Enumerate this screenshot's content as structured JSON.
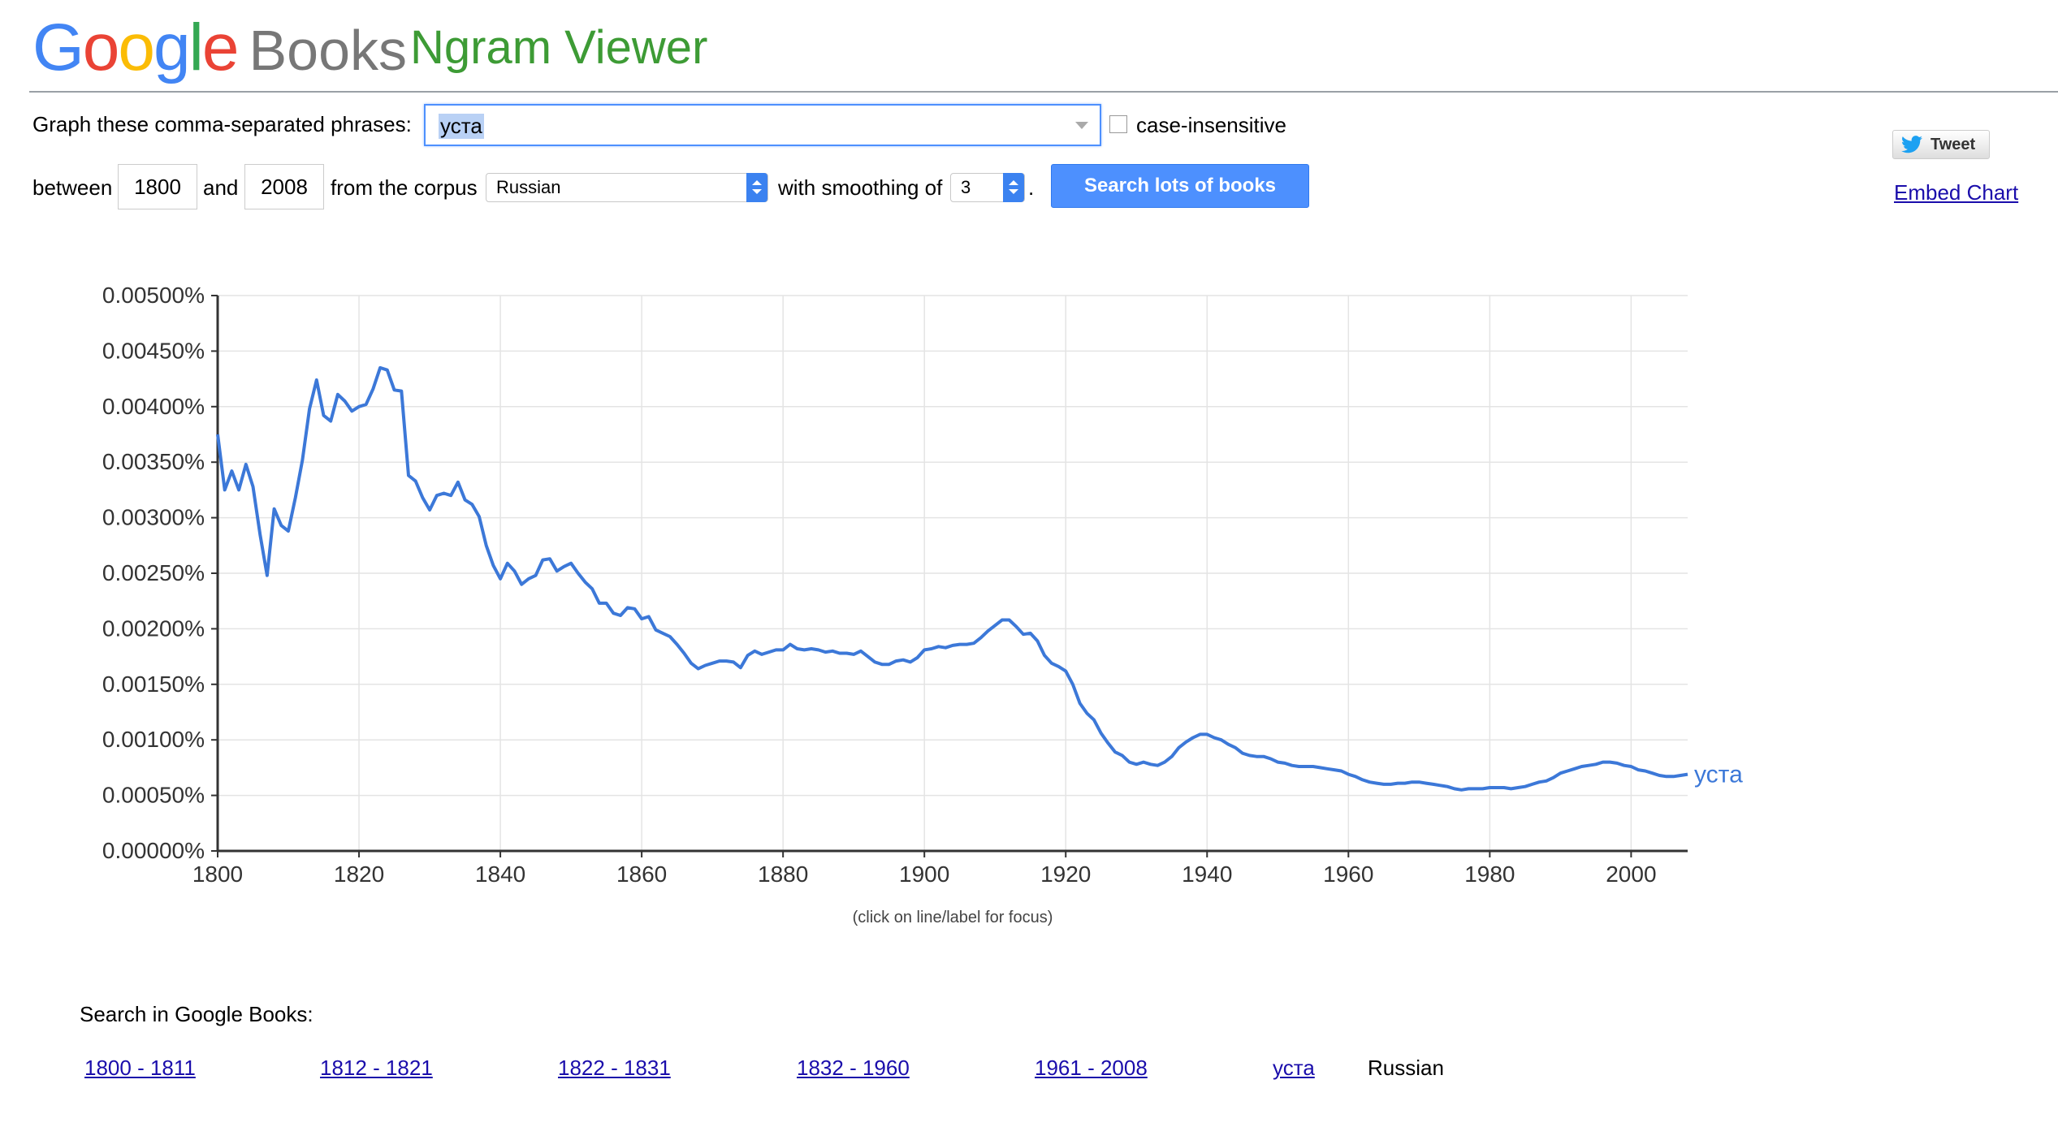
{
  "header": {
    "logo_google": "Google",
    "logo_books": "Books",
    "app_title": "Ngram Viewer",
    "logo_colors": [
      "#4285F4",
      "#EA4335",
      "#FBBC05",
      "#4285F4",
      "#34A853",
      "#EA4335"
    ]
  },
  "form": {
    "phrases_label": "Graph these comma-separated phrases:",
    "phrases_value": "уста",
    "case_insensitive_label": "case-insensitive",
    "case_insensitive_checked": false,
    "between_label": "between",
    "start_year": "1800",
    "and_label": "and",
    "end_year": "2008",
    "corpus_label": "from the corpus",
    "corpus_value": "Russian",
    "smoothing_label": "with smoothing of",
    "smoothing_value": "3",
    "period": ".",
    "search_button": "Search lots of books"
  },
  "share": {
    "tweet_label": "Tweet",
    "embed_label": "Embed Chart"
  },
  "chart_data": {
    "type": "line",
    "xlim": [
      1800,
      2008
    ],
    "ylim": [
      0,
      0.005
    ],
    "x_ticks": [
      "1800",
      "1820",
      "1840",
      "1860",
      "1880",
      "1900",
      "1920",
      "1940",
      "1960",
      "1980",
      "2000"
    ],
    "y_ticks": [
      "0.00000%",
      "0.00050%",
      "0.00100%",
      "0.00150%",
      "0.00200%",
      "0.00250%",
      "0.00300%",
      "0.00350%",
      "0.00400%",
      "0.00450%",
      "0.00500%"
    ],
    "grid": true,
    "note": "(click on line/label for focus)",
    "series": [
      {
        "name": "уста",
        "color": "#3c78d8",
        "points": [
          [
            1800,
            0.00375
          ],
          [
            1801,
            0.00325
          ],
          [
            1802,
            0.00342
          ],
          [
            1803,
            0.00325
          ],
          [
            1804,
            0.00348
          ],
          [
            1805,
            0.00328
          ],
          [
            1806,
            0.00285
          ],
          [
            1807,
            0.00248
          ],
          [
            1808,
            0.00308
          ],
          [
            1809,
            0.00293
          ],
          [
            1810,
            0.00288
          ],
          [
            1811,
            0.00318
          ],
          [
            1812,
            0.00352
          ],
          [
            1813,
            0.00398
          ],
          [
            1814,
            0.00424
          ],
          [
            1815,
            0.00392
          ],
          [
            1816,
            0.00387
          ],
          [
            1817,
            0.00411
          ],
          [
            1818,
            0.00405
          ],
          [
            1819,
            0.00396
          ],
          [
            1820,
            0.004
          ],
          [
            1821,
            0.00402
          ],
          [
            1822,
            0.00416
          ],
          [
            1823,
            0.00435
          ],
          [
            1824,
            0.00433
          ],
          [
            1825,
            0.00415
          ],
          [
            1826,
            0.00414
          ],
          [
            1827,
            0.00338
          ],
          [
            1828,
            0.00333
          ],
          [
            1829,
            0.00318
          ],
          [
            1830,
            0.00307
          ],
          [
            1831,
            0.0032
          ],
          [
            1832,
            0.00322
          ],
          [
            1833,
            0.0032
          ],
          [
            1834,
            0.00332
          ],
          [
            1835,
            0.00316
          ],
          [
            1836,
            0.00312
          ],
          [
            1837,
            0.00301
          ],
          [
            1838,
            0.00275
          ],
          [
            1839,
            0.00257
          ],
          [
            1840,
            0.00245
          ],
          [
            1841,
            0.00259
          ],
          [
            1842,
            0.00252
          ],
          [
            1843,
            0.0024
          ],
          [
            1844,
            0.00245
          ],
          [
            1845,
            0.00248
          ],
          [
            1846,
            0.00262
          ],
          [
            1847,
            0.00263
          ],
          [
            1848,
            0.00252
          ],
          [
            1849,
            0.00256
          ],
          [
            1850,
            0.00259
          ],
          [
            1851,
            0.0025
          ],
          [
            1852,
            0.00242
          ],
          [
            1853,
            0.00236
          ],
          [
            1854,
            0.00223
          ],
          [
            1855,
            0.00223
          ],
          [
            1856,
            0.00214
          ],
          [
            1857,
            0.00212
          ],
          [
            1858,
            0.00219
          ],
          [
            1859,
            0.00218
          ],
          [
            1860,
            0.00209
          ],
          [
            1861,
            0.00211
          ],
          [
            1862,
            0.00199
          ],
          [
            1863,
            0.00196
          ],
          [
            1864,
            0.00193
          ],
          [
            1865,
            0.00186
          ],
          [
            1866,
            0.00178
          ],
          [
            1867,
            0.00169
          ],
          [
            1868,
            0.00164
          ],
          [
            1869,
            0.00167
          ],
          [
            1870,
            0.00169
          ],
          [
            1871,
            0.00171
          ],
          [
            1872,
            0.00171
          ],
          [
            1873,
            0.0017
          ],
          [
            1874,
            0.00165
          ],
          [
            1875,
            0.00176
          ],
          [
            1876,
            0.0018
          ],
          [
            1877,
            0.00177
          ],
          [
            1878,
            0.00179
          ],
          [
            1879,
            0.00181
          ],
          [
            1880,
            0.00181
          ],
          [
            1881,
            0.00186
          ],
          [
            1882,
            0.00182
          ],
          [
            1883,
            0.00181
          ],
          [
            1884,
            0.00182
          ],
          [
            1885,
            0.00181
          ],
          [
            1886,
            0.00179
          ],
          [
            1887,
            0.0018
          ],
          [
            1888,
            0.00178
          ],
          [
            1889,
            0.00178
          ],
          [
            1890,
            0.00177
          ],
          [
            1891,
            0.0018
          ],
          [
            1892,
            0.00175
          ],
          [
            1893,
            0.0017
          ],
          [
            1894,
            0.00168
          ],
          [
            1895,
            0.00168
          ],
          [
            1896,
            0.00171
          ],
          [
            1897,
            0.00172
          ],
          [
            1898,
            0.0017
          ],
          [
            1899,
            0.00174
          ],
          [
            1900,
            0.00181
          ],
          [
            1901,
            0.00182
          ],
          [
            1902,
            0.00184
          ],
          [
            1903,
            0.00183
          ],
          [
            1904,
            0.00185
          ],
          [
            1905,
            0.00186
          ],
          [
            1906,
            0.00186
          ],
          [
            1907,
            0.00187
          ],
          [
            1908,
            0.00192
          ],
          [
            1909,
            0.00198
          ],
          [
            1910,
            0.00203
          ],
          [
            1911,
            0.00208
          ],
          [
            1912,
            0.00208
          ],
          [
            1913,
            0.00202
          ],
          [
            1914,
            0.00195
          ],
          [
            1915,
            0.00196
          ],
          [
            1916,
            0.00189
          ],
          [
            1917,
            0.00176
          ],
          [
            1918,
            0.00169
          ],
          [
            1919,
            0.00166
          ],
          [
            1920,
            0.00162
          ],
          [
            1921,
            0.0015
          ],
          [
            1922,
            0.00133
          ],
          [
            1923,
            0.00124
          ],
          [
            1924,
            0.00118
          ],
          [
            1925,
            0.00106
          ],
          [
            1926,
            0.00097
          ],
          [
            1927,
            0.00089
          ],
          [
            1928,
            0.00086
          ],
          [
            1929,
            0.0008
          ],
          [
            1930,
            0.00078
          ],
          [
            1931,
            0.0008
          ],
          [
            1932,
            0.00078
          ],
          [
            1933,
            0.00077
          ],
          [
            1934,
            0.0008
          ],
          [
            1935,
            0.00085
          ],
          [
            1936,
            0.00093
          ],
          [
            1937,
            0.00098
          ],
          [
            1938,
            0.00102
          ],
          [
            1939,
            0.00105
          ],
          [
            1940,
            0.00105
          ],
          [
            1941,
            0.00102
          ],
          [
            1942,
            0.001
          ],
          [
            1943,
            0.00096
          ],
          [
            1944,
            0.00093
          ],
          [
            1945,
            0.00088
          ],
          [
            1946,
            0.00086
          ],
          [
            1947,
            0.00085
          ],
          [
            1948,
            0.00085
          ],
          [
            1949,
            0.00083
          ],
          [
            1950,
            0.0008
          ],
          [
            1951,
            0.00079
          ],
          [
            1952,
            0.00077
          ],
          [
            1953,
            0.00076
          ],
          [
            1954,
            0.00076
          ],
          [
            1955,
            0.00076
          ],
          [
            1956,
            0.00075
          ],
          [
            1957,
            0.00074
          ],
          [
            1958,
            0.00073
          ],
          [
            1959,
            0.00072
          ],
          [
            1960,
            0.00069
          ],
          [
            1961,
            0.00067
          ],
          [
            1962,
            0.00064
          ],
          [
            1963,
            0.00062
          ],
          [
            1964,
            0.00061
          ],
          [
            1965,
            0.0006
          ],
          [
            1966,
            0.0006
          ],
          [
            1967,
            0.00061
          ],
          [
            1968,
            0.00061
          ],
          [
            1969,
            0.00062
          ],
          [
            1970,
            0.00062
          ],
          [
            1971,
            0.00061
          ],
          [
            1972,
            0.0006
          ],
          [
            1973,
            0.00059
          ],
          [
            1974,
            0.00058
          ],
          [
            1975,
            0.00056
          ],
          [
            1976,
            0.00055
          ],
          [
            1977,
            0.00056
          ],
          [
            1978,
            0.00056
          ],
          [
            1979,
            0.00056
          ],
          [
            1980,
            0.00057
          ],
          [
            1981,
            0.00057
          ],
          [
            1982,
            0.00057
          ],
          [
            1983,
            0.00056
          ],
          [
            1984,
            0.00057
          ],
          [
            1985,
            0.00058
          ],
          [
            1986,
            0.0006
          ],
          [
            1987,
            0.00062
          ],
          [
            1988,
            0.00063
          ],
          [
            1989,
            0.00066
          ],
          [
            1990,
            0.0007
          ],
          [
            1991,
            0.00072
          ],
          [
            1992,
            0.00074
          ],
          [
            1993,
            0.00076
          ],
          [
            1994,
            0.00077
          ],
          [
            1995,
            0.00078
          ],
          [
            1996,
            0.0008
          ],
          [
            1997,
            0.0008
          ],
          [
            1998,
            0.00079
          ],
          [
            1999,
            0.00077
          ],
          [
            2000,
            0.00076
          ],
          [
            2001,
            0.00073
          ],
          [
            2002,
            0.00072
          ],
          [
            2003,
            0.0007
          ],
          [
            2004,
            0.00068
          ],
          [
            2005,
            0.00067
          ],
          [
            2006,
            0.00067
          ],
          [
            2007,
            0.00068
          ],
          [
            2008,
            0.00069
          ]
        ]
      }
    ]
  },
  "footer": {
    "search_in_label": "Search in Google Books:",
    "links": [
      "1800 - 1811",
      "1812 - 1821",
      "1822 - 1831",
      "1832 - 1960",
      "1961 - 2008",
      "уста"
    ],
    "corpus_text": "Russian"
  }
}
